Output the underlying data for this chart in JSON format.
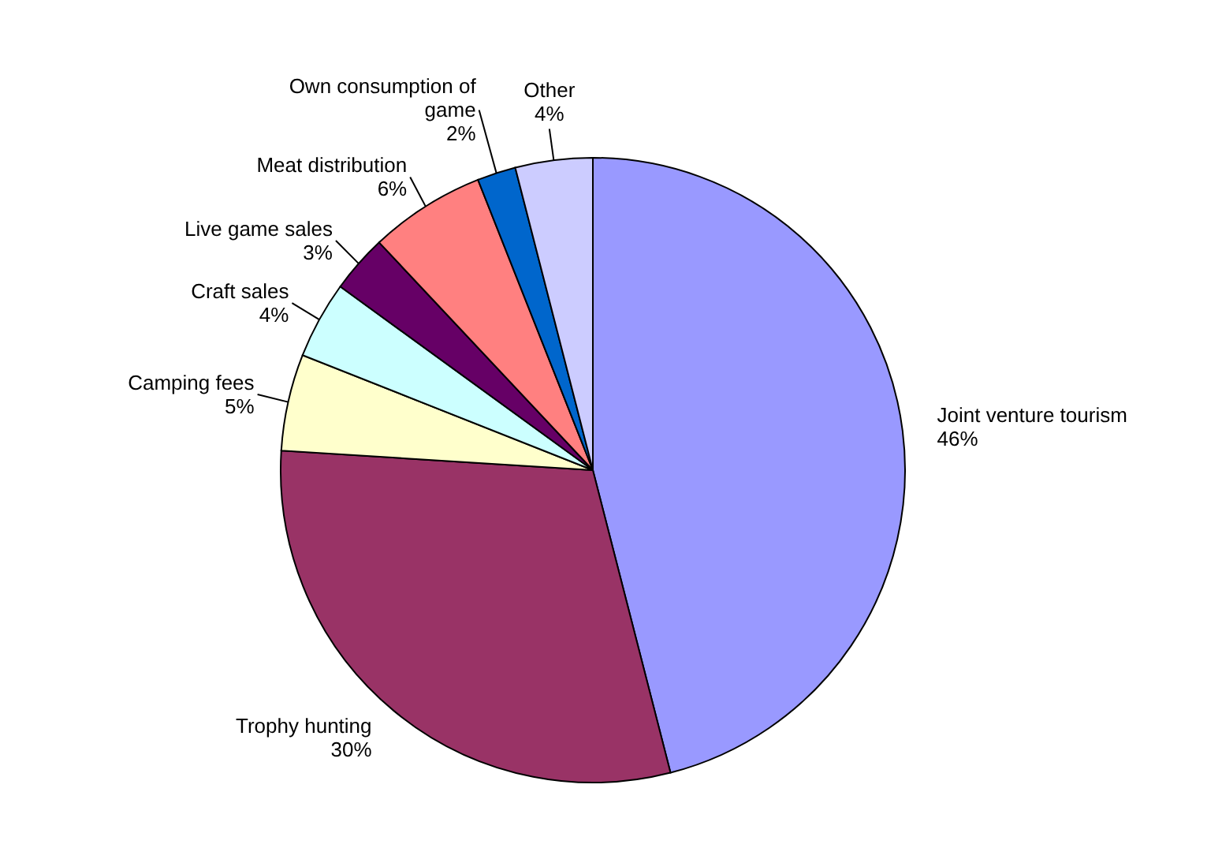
{
  "chart_data": {
    "type": "pie",
    "categories": [
      "Joint venture tourism",
      "Trophy hunting",
      "Camping fees",
      "Craft sales",
      "Live game sales",
      "Meat distribution",
      "Own consumption of game",
      "Other"
    ],
    "values": [
      46,
      30,
      5,
      4,
      3,
      6,
      2,
      4
    ],
    "value_labels": [
      "46%",
      "30%",
      "5%",
      "4%",
      "3%",
      "6%",
      "2%",
      "4%"
    ],
    "colors": [
      "#9999ff",
      "#993366",
      "#ffffcc",
      "#ccffff",
      "#660066",
      "#ff8080",
      "#0066cc",
      "#ccccff"
    ]
  }
}
